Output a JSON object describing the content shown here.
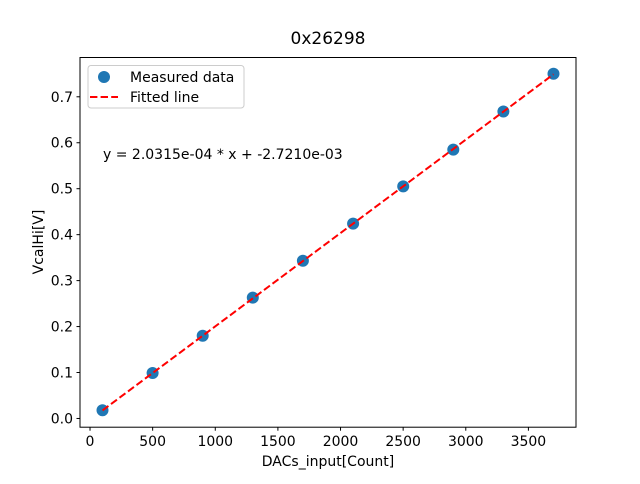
{
  "figure": {
    "background": "#ffffff",
    "frame_color": "#000000",
    "text_color": "#000000"
  },
  "chart_data": {
    "type": "scatter",
    "title": "0x26298",
    "xlabel": "DACs_input[Count]",
    "ylabel": "VcalHi[V]",
    "xlim": [
      -80,
      3880
    ],
    "ylim": [
      -0.019,
      0.7855
    ],
    "x_ticks": [
      0,
      500,
      1000,
      1500,
      2000,
      2500,
      3000,
      3500
    ],
    "x_tick_labels": [
      "0",
      "500",
      "1000",
      "1500",
      "2000",
      "2500",
      "3000",
      "3500"
    ],
    "y_ticks": [
      0.0,
      0.1,
      0.2,
      0.3,
      0.4,
      0.5,
      0.6,
      0.7
    ],
    "y_tick_labels": [
      "0.0",
      "0.1",
      "0.2",
      "0.3",
      "0.4",
      "0.5",
      "0.6",
      "0.7"
    ],
    "grid": false,
    "annotation": "y = 2.0315e-04 * x + -2.7210e-03",
    "series": [
      {
        "name": "Measured data",
        "type": "scatter",
        "color": "#1f77b4",
        "x": [
          100,
          500,
          900,
          1300,
          1700,
          2100,
          2500,
          2900,
          3300,
          3700
        ],
        "y": [
          0.018,
          0.099,
          0.18,
          0.263,
          0.343,
          0.424,
          0.505,
          0.585,
          0.668,
          0.75
        ]
      },
      {
        "name": "Fitted line",
        "type": "line",
        "style": "dashed",
        "color": "#ff0000",
        "slope": 0.00020315,
        "intercept": -0.002721,
        "x_range": [
          100,
          3700
        ]
      }
    ],
    "legend": {
      "position": "upper-left",
      "entries": [
        "Measured data",
        "Fitted line"
      ]
    }
  }
}
